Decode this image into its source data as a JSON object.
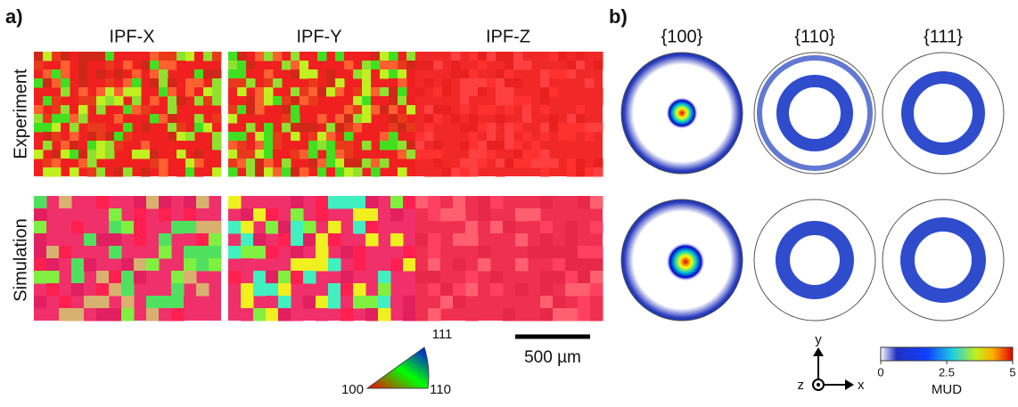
{
  "panel_a": {
    "label": "a)",
    "columns": [
      "IPF-X",
      "IPF-Y",
      "IPF-Z"
    ],
    "rows": [
      "Experiment",
      "Simulation"
    ],
    "scale_bar": "500 µm",
    "ipf_key": {
      "top": "111",
      "left": "100",
      "right": "110"
    }
  },
  "panel_b": {
    "label": "b)",
    "columns": [
      "{100}",
      "{110}",
      "{111}"
    ],
    "axes": {
      "y": "y",
      "z": "z",
      "x": "x"
    },
    "colorbar": {
      "label": "MUD",
      "range": [
        0,
        5
      ],
      "ticks": [
        0,
        2.5,
        5
      ]
    }
  }
}
